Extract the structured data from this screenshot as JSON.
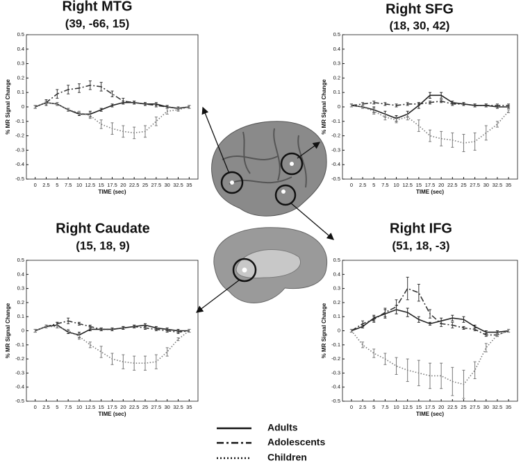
{
  "chart_data": [
    {
      "type": "line",
      "title": "Right MTG",
      "subtitle": "(39, -66, 15)",
      "xlabel": "TIME (sec)",
      "ylabel": "% MR Signal Change",
      "x": [
        0,
        2.5,
        5,
        7.5,
        10,
        12.5,
        15,
        17.5,
        20,
        22.5,
        25,
        27.5,
        30,
        32.5,
        35
      ],
      "xlim": [
        -2,
        37
      ],
      "ylim": [
        -0.5,
        0.5
      ],
      "xticks": [
        0,
        2.5,
        5,
        7.5,
        10,
        12.5,
        15,
        17.5,
        20,
        22.5,
        25,
        27.5,
        30,
        32.5,
        35
      ],
      "yticks": [
        -0.5,
        -0.4,
        -0.3,
        -0.2,
        -0.1,
        0,
        0.1,
        0.2,
        0.3,
        0.4,
        0.5
      ],
      "series": [
        {
          "name": "Adults",
          "color": "#222222",
          "linestyle": "solid",
          "values": [
            0,
            0.03,
            0.02,
            -0.02,
            -0.05,
            -0.05,
            -0.02,
            0.01,
            0.03,
            0.03,
            0.02,
            0.02,
            0,
            -0.01,
            0
          ],
          "errors": [
            0.01,
            0.01,
            0.01,
            0.01,
            0.01,
            0.02,
            0.01,
            0.01,
            0.01,
            0.01,
            0.01,
            0.01,
            0.01,
            0.01,
            0.01
          ]
        },
        {
          "name": "Adolescents",
          "color": "#333333",
          "linestyle": "dashdot",
          "values": [
            0,
            0.03,
            0.09,
            0.12,
            0.13,
            0.15,
            0.14,
            0.09,
            0.04,
            0.03,
            0.02,
            0.01,
            0,
            -0.01,
            0
          ],
          "errors": [
            0.01,
            0.02,
            0.03,
            0.03,
            0.03,
            0.03,
            0.03,
            0.02,
            0.02,
            0.01,
            0.01,
            0.01,
            0.01,
            0.01,
            0.01
          ]
        },
        {
          "name": "Children",
          "color": "#777777",
          "linestyle": "dotted",
          "values": [
            0,
            0.03,
            0.02,
            -0.02,
            -0.04,
            -0.06,
            -0.12,
            -0.15,
            -0.17,
            -0.18,
            -0.17,
            -0.1,
            -0.03,
            -0.02,
            0
          ],
          "errors": [
            0.01,
            0.01,
            0.01,
            0.01,
            0.01,
            0.02,
            0.03,
            0.04,
            0.04,
            0.04,
            0.04,
            0.03,
            0.02,
            0.01,
            0.01
          ]
        }
      ]
    },
    {
      "type": "line",
      "title": "Right SFG",
      "subtitle": "(18, 30, 42)",
      "xlabel": "TIME (sec)",
      "ylabel": "% MR Signal Change",
      "x": [
        0,
        2.5,
        5,
        7.5,
        10,
        12.5,
        15,
        17.5,
        20,
        22.5,
        25,
        27.5,
        30,
        32.5,
        35
      ],
      "xlim": [
        -2,
        37
      ],
      "ylim": [
        -0.5,
        0.5
      ],
      "xticks": [
        0,
        2.5,
        5,
        7.5,
        10,
        12.5,
        15,
        17.5,
        20,
        22.5,
        25,
        27.5,
        30,
        32.5,
        35
      ],
      "yticks": [
        -0.5,
        -0.4,
        -0.3,
        -0.2,
        -0.1,
        0,
        0.1,
        0.2,
        0.3,
        0.4,
        0.5
      ],
      "series": [
        {
          "name": "Adults",
          "color": "#222222",
          "linestyle": "solid",
          "values": [
            0.01,
            0,
            -0.02,
            -0.05,
            -0.08,
            -0.05,
            0.01,
            0.08,
            0.08,
            0.03,
            0.02,
            0.01,
            0.01,
            0,
            0
          ],
          "errors": [
            0.01,
            0.01,
            0.02,
            0.02,
            0.02,
            0.02,
            0.02,
            0.02,
            0.02,
            0.01,
            0.01,
            0.01,
            0.01,
            0.01,
            0.01
          ]
        },
        {
          "name": "Adolescents",
          "color": "#333333",
          "linestyle": "dashdot",
          "values": [
            0.01,
            0.02,
            0.03,
            0.02,
            0.01,
            0.02,
            0.02,
            0.03,
            0.04,
            0.02,
            0.02,
            0.01,
            0.01,
            0.01,
            0.01
          ],
          "errors": [
            0.01,
            0.01,
            0.01,
            0.01,
            0.01,
            0.01,
            0.01,
            0.01,
            0.01,
            0.01,
            0.01,
            0.01,
            0.01,
            0.01,
            0.01
          ]
        },
        {
          "name": "Children",
          "color": "#777777",
          "linestyle": "dotted",
          "values": [
            0.01,
            0,
            -0.03,
            -0.07,
            -0.09,
            -0.07,
            -0.13,
            -0.2,
            -0.22,
            -0.23,
            -0.25,
            -0.24,
            -0.18,
            -0.12,
            -0.03
          ],
          "errors": [
            0.01,
            0.01,
            0.02,
            0.02,
            0.02,
            0.02,
            0.04,
            0.04,
            0.05,
            0.05,
            0.06,
            0.06,
            0.05,
            0.02,
            0.01
          ]
        }
      ]
    },
    {
      "type": "line",
      "title": "Right Caudate",
      "subtitle": "(15, 18, 9)",
      "xlabel": "TIME (sec)",
      "ylabel": "% MR Signal Change",
      "x": [
        0,
        2.5,
        5,
        7.5,
        10,
        12.5,
        15,
        17.5,
        20,
        22.5,
        25,
        27.5,
        30,
        32.5,
        35
      ],
      "xlim": [
        -2,
        37
      ],
      "ylim": [
        -0.5,
        0.5
      ],
      "xticks": [
        0,
        2.5,
        5,
        7.5,
        10,
        12.5,
        15,
        17.5,
        20,
        22.5,
        25,
        27.5,
        30,
        32.5,
        35
      ],
      "yticks": [
        -0.5,
        -0.4,
        -0.3,
        -0.2,
        -0.1,
        0,
        0.1,
        0.2,
        0.3,
        0.4,
        0.5
      ],
      "series": [
        {
          "name": "Adults",
          "color": "#222222",
          "linestyle": "solid",
          "values": [
            0,
            0.03,
            0.04,
            -0.01,
            -0.03,
            0.01,
            0.01,
            0.01,
            0.02,
            0.03,
            0.04,
            0.02,
            0.01,
            0,
            0
          ],
          "errors": [
            0.01,
            0.01,
            0.02,
            0.01,
            0.02,
            0.01,
            0.01,
            0.01,
            0.01,
            0.01,
            0.01,
            0.01,
            0.01,
            0.01,
            0.01
          ]
        },
        {
          "name": "Adolescents",
          "color": "#333333",
          "linestyle": "dashdot",
          "values": [
            0,
            0.03,
            0.05,
            0.07,
            0.05,
            0.03,
            0.01,
            0.01,
            0.02,
            0.03,
            0.02,
            0.01,
            0,
            -0.01,
            0
          ],
          "errors": [
            0.01,
            0.01,
            0.01,
            0.02,
            0.01,
            0.01,
            0.01,
            0.01,
            0.01,
            0.01,
            0.01,
            0.01,
            0.01,
            0.01,
            0.01
          ]
        },
        {
          "name": "Children",
          "color": "#777777",
          "linestyle": "dotted",
          "values": [
            0,
            0.03,
            0.03,
            0,
            -0.04,
            -0.1,
            -0.15,
            -0.2,
            -0.22,
            -0.23,
            -0.23,
            -0.22,
            -0.15,
            -0.06,
            0
          ],
          "errors": [
            0.01,
            0.01,
            0.01,
            0.01,
            0.02,
            0.02,
            0.04,
            0.04,
            0.05,
            0.05,
            0.05,
            0.05,
            0.03,
            0.01,
            0.01
          ]
        }
      ]
    },
    {
      "type": "line",
      "title": "Right IFG",
      "subtitle": "(51, 18, -3)",
      "xlabel": "TIME (sec)",
      "ylabel": "% MR Signal Change",
      "x": [
        0,
        2.5,
        5,
        7.5,
        10,
        12.5,
        15,
        17.5,
        20,
        22.5,
        25,
        27.5,
        30,
        32.5,
        35
      ],
      "xlim": [
        -2,
        37
      ],
      "ylim": [
        -0.5,
        0.5
      ],
      "xticks": [
        0,
        2.5,
        5,
        7.5,
        10,
        12.5,
        15,
        17.5,
        20,
        22.5,
        25,
        27.5,
        30,
        32.5,
        35
      ],
      "yticks": [
        -0.5,
        -0.4,
        -0.3,
        -0.2,
        -0.1,
        0,
        0.1,
        0.2,
        0.3,
        0.4,
        0.5
      ],
      "series": [
        {
          "name": "Adults",
          "color": "#222222",
          "linestyle": "solid",
          "values": [
            0,
            0.03,
            0.09,
            0.12,
            0.15,
            0.13,
            0.08,
            0.05,
            0.07,
            0.09,
            0.08,
            0.03,
            -0.01,
            -0.01,
            0
          ],
          "errors": [
            0.01,
            0.01,
            0.02,
            0.03,
            0.03,
            0.03,
            0.02,
            0.01,
            0.02,
            0.02,
            0.02,
            0.01,
            0.01,
            0.01,
            0.01
          ]
        },
        {
          "name": "Adolescents",
          "color": "#333333",
          "linestyle": "dashdot",
          "values": [
            0,
            0.05,
            0.08,
            0.13,
            0.17,
            0.3,
            0.27,
            0.12,
            0.05,
            0.04,
            0.02,
            0.01,
            -0.03,
            -0.03,
            0
          ],
          "errors": [
            0.01,
            0.02,
            0.02,
            0.03,
            0.05,
            0.08,
            0.06,
            0.03,
            0.02,
            0.02,
            0.01,
            0.01,
            0.01,
            0.01,
            0.01
          ]
        },
        {
          "name": "Children",
          "color": "#777777",
          "linestyle": "dotted",
          "values": [
            0,
            -0.1,
            -0.16,
            -0.2,
            -0.25,
            -0.28,
            -0.3,
            -0.32,
            -0.32,
            -0.36,
            -0.38,
            -0.28,
            -0.12,
            -0.03,
            0
          ],
          "errors": [
            0.01,
            0.02,
            0.03,
            0.04,
            0.06,
            0.08,
            0.09,
            0.09,
            0.09,
            0.1,
            0.1,
            0.06,
            0.03,
            0.01,
            0.01
          ]
        }
      ]
    }
  ]
}
